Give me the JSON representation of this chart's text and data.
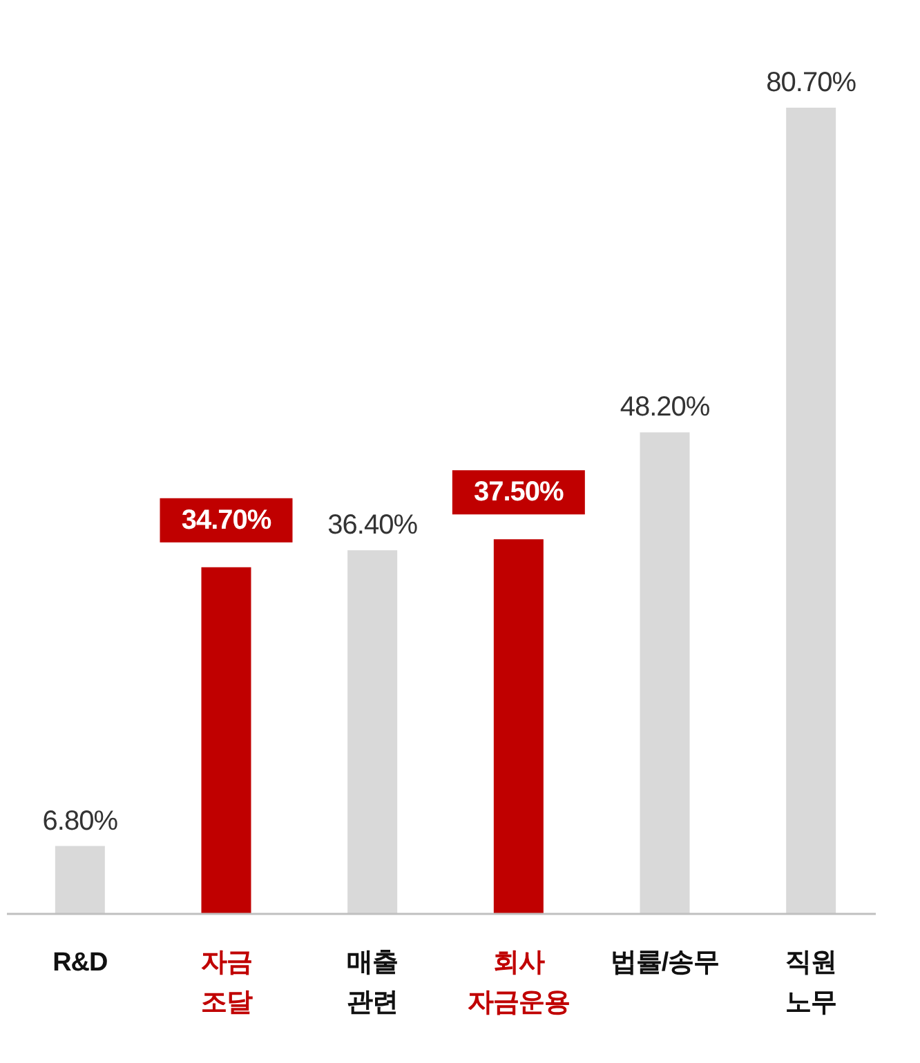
{
  "chart_data": {
    "type": "bar",
    "categories": [
      "R&D",
      "자금\n조달",
      "매출\n관련",
      "회사\n자금운용",
      "법률/송무",
      "직원\n노무"
    ],
    "values": [
      6.8,
      34.7,
      36.4,
      37.5,
      48.2,
      80.7
    ],
    "colors": [
      "#d9d9d9",
      "#c00000",
      "#d9d9d9",
      "#c00000",
      "#d9d9d9",
      "#d9d9d9"
    ],
    "value_labels": [
      "6.80%",
      "34.70%",
      "36.40%",
      "37.50%",
      "48.20%",
      "80.70%"
    ]
  }
}
